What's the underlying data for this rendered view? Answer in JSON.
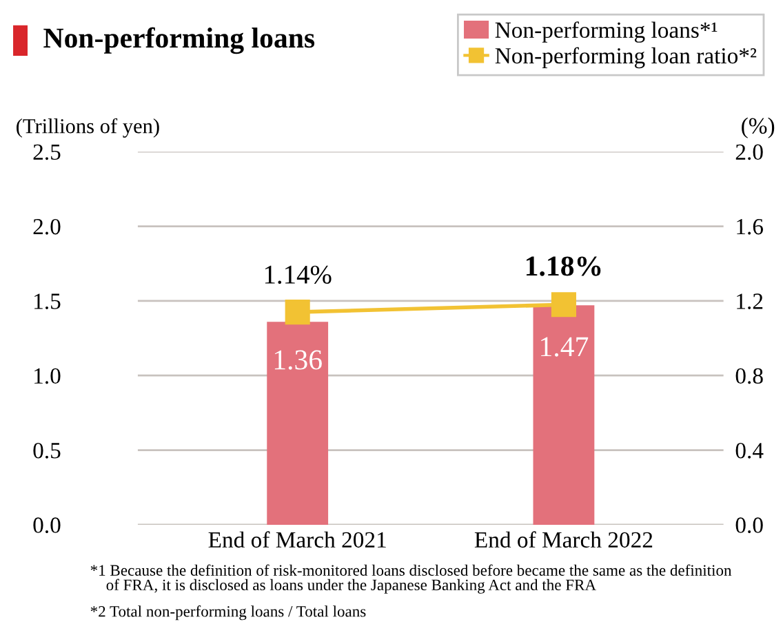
{
  "chart_data": {
    "type": "bar",
    "title": "Non-performing loans",
    "ylabel": "(Trillions of yen)",
    "y2label": "(%)",
    "categories": [
      "End of March 2021",
      "End of March 2022"
    ],
    "series": [
      {
        "name": "Non-performing loans*¹",
        "color": "#e3717b",
        "values": [
          1.36,
          1.47
        ],
        "value_labels": [
          "1.36",
          "1.47"
        ]
      },
      {
        "name": "Non-performing loan ratio*²",
        "type": "line",
        "axis": "y2",
        "color": "#f2c233",
        "marker": "square",
        "values": [
          1.14,
          1.18
        ],
        "value_labels": [
          "1.14%",
          "1.18%"
        ]
      }
    ],
    "ylim": [
      0,
      2.5
    ],
    "yticks": [
      {
        "value": 0,
        "label": "0.0"
      },
      {
        "value": 0.5,
        "label": "0.5"
      },
      {
        "value": 1.0,
        "label": "1.0"
      },
      {
        "value": 1.5,
        "label": "1.5"
      },
      {
        "value": 2.0,
        "label": "2.0"
      },
      {
        "value": 2.5,
        "label": "2.5"
      }
    ],
    "y2lim": [
      0,
      2.0
    ],
    "y2ticks": [
      {
        "value": 0,
        "label": "0.0"
      },
      {
        "value": 0.4,
        "label": "0.4"
      },
      {
        "value": 0.8,
        "label": "0.8"
      },
      {
        "value": 1.2,
        "label": "1.2"
      },
      {
        "value": 1.6,
        "label": "1.6"
      },
      {
        "value": 2.0,
        "label": "2.0"
      }
    ],
    "grid": "y",
    "legend": "top right",
    "annotations": [
      "*1 Because the definition of risk-monitored loans disclosed before became the same as the definition\n    of FRA, it is disclosed as loans under the Japanese Banking Act and the FRA",
      "*2 Total non-performing loans / Total loans"
    ]
  }
}
